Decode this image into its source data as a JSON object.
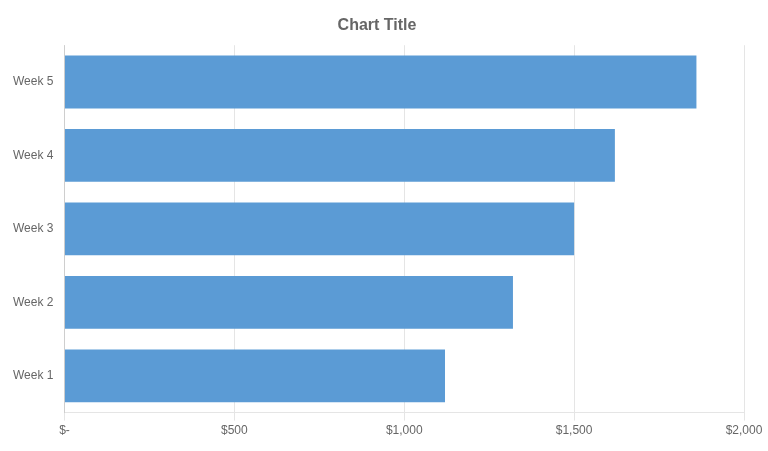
{
  "chart_data": {
    "type": "bar",
    "orientation": "horizontal",
    "title": "Chart Title",
    "categories": [
      "Week 1",
      "Week 2",
      "Week 3",
      "Week 4",
      "Week 5"
    ],
    "values": [
      1120,
      1320,
      1500,
      1620,
      1860
    ],
    "color": "#5b9bd5",
    "xlim": [
      0,
      2000
    ],
    "xticks": [
      {
        "value": 0,
        "label": "$-"
      },
      {
        "value": 500,
        "label": "$500"
      },
      {
        "value": 1000,
        "label": "$1,000"
      },
      {
        "value": 1500,
        "label": "$1,500"
      },
      {
        "value": 2000,
        "label": "$2,000"
      }
    ],
    "grid": true
  }
}
